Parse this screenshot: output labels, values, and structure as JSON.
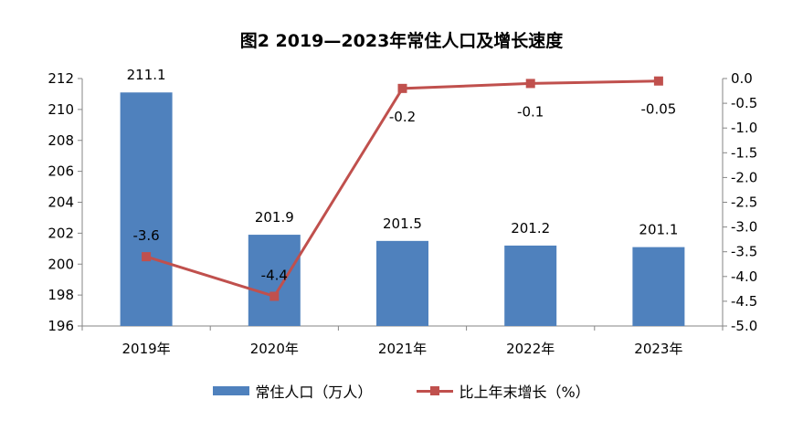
{
  "chart_data": {
    "type": "bar",
    "title": "图2   2019—2023年常住人口及增长速度",
    "categories": [
      "2019年",
      "2020年",
      "2021年",
      "2022年",
      "2023年"
    ],
    "series": [
      {
        "name": "常住人口（万人）",
        "type": "bar",
        "axis": "left",
        "color": "#4F81BD",
        "values": [
          211.1,
          201.9,
          201.5,
          201.2,
          201.1
        ],
        "labels": [
          "211.1",
          "201.9",
          "201.5",
          "201.2",
          "201.1"
        ]
      },
      {
        "name": "比上年末增长（%）",
        "type": "line",
        "axis": "right",
        "color": "#C0504D",
        "values": [
          -3.6,
          -4.4,
          -0.2,
          -0.1,
          -0.05
        ],
        "labels": [
          "-3.6",
          "-4.4",
          "-0.2",
          "-0.1",
          "-0.05"
        ]
      }
    ],
    "y_left": {
      "min": 196,
      "max": 212,
      "ticks": [
        "196",
        "198",
        "200",
        "202",
        "204",
        "206",
        "208",
        "210",
        "212"
      ]
    },
    "y_right": {
      "min": -5.0,
      "max": 0.0,
      "ticks": [
        "0.0",
        "-0.5",
        "-1.0",
        "-1.5",
        "-2.0",
        "-2.5",
        "-3.0",
        "-3.5",
        "-4.0",
        "-4.5",
        "-5.0"
      ]
    },
    "grid": false,
    "legend_position": "bottom"
  }
}
